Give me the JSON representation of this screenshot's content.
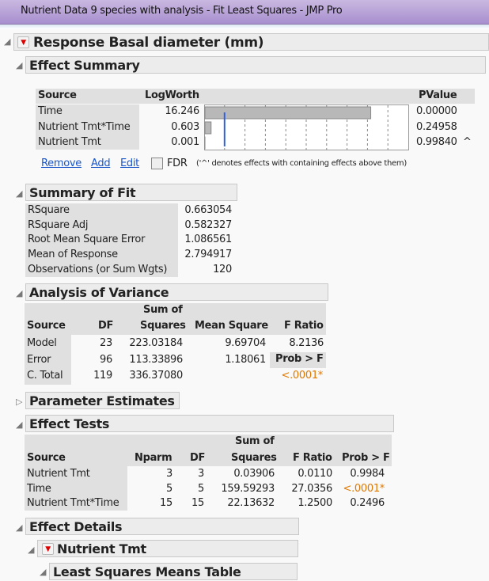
{
  "window": {
    "title": "Nutrient Data 9 species with analysis - Fit Least Squares - JMP Pro"
  },
  "response": {
    "title": "Response Basal diameter (mm)"
  },
  "effect_summary": {
    "title": "Effect Summary",
    "headers": [
      "Source",
      "LogWorth",
      "PValue"
    ],
    "rows": [
      {
        "source": "Time",
        "logworth": "16.246",
        "pvalue": "0.00000",
        "mark": ""
      },
      {
        "source": "Nutrient Tmt*Time",
        "logworth": "0.603",
        "pvalue": "0.24958",
        "mark": ""
      },
      {
        "source": "Nutrient Tmt",
        "logworth": "0.001",
        "pvalue": "0.99840",
        "mark": "^"
      }
    ],
    "logworth_values": [
      16.246,
      0.603,
      0.001
    ],
    "scale_max": 20,
    "reference_line": 2,
    "remove": "Remove",
    "add": "Add",
    "edit": "Edit",
    "fdr_label": "FDR",
    "fdr_checked": false,
    "note": "('^' denotes effects with containing effects above them)"
  },
  "summary_of_fit": {
    "title": "Summary of Fit",
    "rows": [
      {
        "label": "RSquare",
        "value": "0.663054"
      },
      {
        "label": "RSquare Adj",
        "value": "0.582327"
      },
      {
        "label": "Root Mean Square Error",
        "value": "1.086561"
      },
      {
        "label": "Mean of Response",
        "value": "2.794917"
      },
      {
        "label": "Observations (or Sum Wgts)",
        "value": "120"
      }
    ]
  },
  "anova": {
    "title": "Analysis of Variance",
    "headers": {
      "source": "Source",
      "df": "DF",
      "ss1": "Sum of",
      "ss2": "Squares",
      "ms": "Mean Square",
      "f": "F Ratio",
      "prob": "Prob > F"
    },
    "rows": [
      {
        "source": "Model",
        "df": "23",
        "ss": "223.03184",
        "ms": "9.69704",
        "f": "8.2136"
      },
      {
        "source": "Error",
        "df": "96",
        "ss": "113.33896",
        "ms": "1.18061"
      },
      {
        "source": "C. Total",
        "df": "119",
        "ss": "336.37080",
        "prob": "<.0001*"
      }
    ]
  },
  "parameter_estimates": {
    "title": "Parameter Estimates"
  },
  "effect_tests": {
    "title": "Effect Tests",
    "headers": {
      "source": "Source",
      "nparm": "Nparm",
      "df": "DF",
      "ss1": "Sum of",
      "ss2": "Squares",
      "f": "F Ratio",
      "prob": "Prob > F"
    },
    "rows": [
      {
        "source": "Nutrient Tmt",
        "nparm": "3",
        "df": "3",
        "ss": "0.03906",
        "f": "0.0110",
        "prob": "0.9984"
      },
      {
        "source": "Time",
        "nparm": "5",
        "df": "5",
        "ss": "159.59293",
        "f": "27.0356",
        "prob": "<.0001*"
      },
      {
        "source": "Nutrient Tmt*Time",
        "nparm": "15",
        "df": "15",
        "ss": "22.13632",
        "f": "1.2500",
        "prob": "0.2496"
      }
    ]
  },
  "effect_details": {
    "title": "Effect Details",
    "sub": "Nutrient Tmt",
    "table": "Least Squares Means Table"
  },
  "colors": {
    "significant": "#e07800",
    "bar": "#b8b8b8",
    "reference": "#3060e0"
  }
}
